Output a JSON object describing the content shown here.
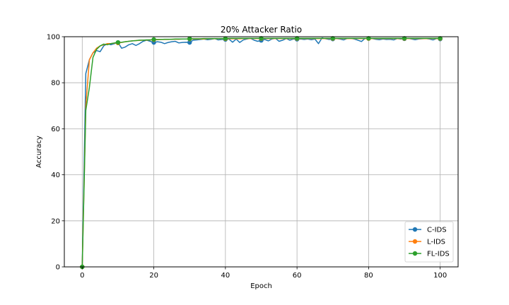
{
  "chart_data": {
    "type": "line",
    "title": "20% Attacker Ratio",
    "xlabel": "Epoch",
    "ylabel": "Accuracy",
    "xlim": [
      -5,
      105
    ],
    "ylim": [
      0,
      100
    ],
    "xticks": [
      0,
      20,
      40,
      60,
      80,
      100
    ],
    "yticks": [
      0,
      20,
      40,
      60,
      80,
      100
    ],
    "xtick_labels": [
      "0",
      "20",
      "40",
      "60",
      "80",
      "100"
    ],
    "ytick_labels": [
      "0",
      "20",
      "40",
      "60",
      "80",
      "100"
    ],
    "grid": true,
    "legend_position": "lower-right",
    "marker_every": 10,
    "series": [
      {
        "name": "C-IDS",
        "color": "#1f77b4",
        "x": [
          0,
          1,
          2,
          3,
          4,
          5,
          6,
          7,
          8,
          9,
          10,
          11,
          12,
          13,
          14,
          15,
          16,
          17,
          18,
          19,
          20,
          21,
          22,
          23,
          24,
          25,
          26,
          27,
          28,
          29,
          30,
          31,
          32,
          33,
          34,
          35,
          36,
          37,
          38,
          39,
          40,
          41,
          42,
          43,
          44,
          45,
          46,
          47,
          48,
          49,
          50,
          51,
          52,
          53,
          54,
          55,
          56,
          57,
          58,
          59,
          60,
          61,
          62,
          63,
          64,
          65,
          66,
          67,
          68,
          69,
          70,
          71,
          72,
          73,
          74,
          75,
          76,
          77,
          78,
          79,
          80,
          81,
          82,
          83,
          84,
          85,
          86,
          87,
          88,
          89,
          90,
          91,
          92,
          93,
          94,
          95,
          96,
          97,
          98,
          99,
          100
        ],
        "y": [
          0,
          84,
          90,
          93,
          94,
          93.5,
          96,
          97,
          96.5,
          97,
          97.5,
          95,
          95.5,
          96.5,
          97,
          96.2,
          97,
          98,
          98.5,
          98,
          97.5,
          97.8,
          97.6,
          97,
          97.5,
          97.8,
          98,
          97.3,
          97.5,
          97.6,
          97.5,
          98.5,
          98.6,
          98.8,
          99,
          98.7,
          98.9,
          99.2,
          98.6,
          98.8,
          98.8,
          99,
          97.6,
          99,
          97.5,
          98.6,
          99,
          99.3,
          98.5,
          98,
          98.4,
          98.8,
          98.2,
          99,
          99.3,
          98,
          98.5,
          99.2,
          98.5,
          99,
          98.9,
          99,
          98.8,
          99,
          98.7,
          99,
          97,
          99.5,
          99.1,
          98.8,
          99,
          99.2,
          99,
          98.6,
          99.2,
          99.3,
          99,
          98.5,
          97.9,
          99.3,
          99.2,
          99.2,
          98.9,
          98.7,
          99,
          98.8,
          98.9,
          98.6,
          99.2,
          99,
          99.1,
          99.3,
          99,
          98.7,
          99,
          99.1,
          99.2,
          99,
          98.6,
          99.2,
          99
        ]
      },
      {
        "name": "L-IDS",
        "color": "#ff7f0e",
        "x": [
          0,
          1,
          2,
          3,
          4,
          5,
          6,
          7,
          8,
          9,
          10,
          11,
          12,
          13,
          14,
          15,
          16,
          17,
          18,
          19,
          20,
          21,
          22,
          23,
          24,
          25,
          26,
          27,
          28,
          29,
          30,
          31,
          32,
          33,
          34,
          35,
          36,
          37,
          38,
          39,
          40,
          41,
          42,
          43,
          44,
          45,
          46,
          47,
          48,
          49,
          50,
          51,
          52,
          53,
          54,
          55,
          56,
          57,
          58,
          59,
          60,
          61,
          62,
          63,
          64,
          65,
          66,
          67,
          68,
          69,
          70,
          71,
          72,
          73,
          74,
          75,
          76,
          77,
          78,
          79,
          80,
          81,
          82,
          83,
          84,
          85,
          86,
          87,
          88,
          89,
          90,
          91,
          92,
          93,
          94,
          95,
          96,
          97,
          98,
          99,
          100
        ],
        "y": [
          0,
          70,
          90,
          93,
          95,
          96,
          96.5,
          97,
          97,
          97.2,
          97.3,
          97.5,
          97.8,
          98,
          98.2,
          98.3,
          98.4,
          98.5,
          98.5,
          98.6,
          98.7,
          98.7,
          98.8,
          98.8,
          98.8,
          98.9,
          98.9,
          98.9,
          99,
          99,
          99,
          99,
          99,
          99,
          99,
          99.1,
          99.1,
          99.1,
          99.1,
          99.1,
          99.1,
          99.1,
          99.1,
          99.1,
          99.1,
          99.2,
          99.2,
          99.2,
          99.2,
          99.2,
          99.2,
          99.2,
          99.2,
          99.2,
          99.2,
          99.2,
          99.2,
          99.2,
          99.2,
          99.2,
          99.2,
          99.2,
          99.2,
          99.2,
          99.2,
          99.2,
          99.2,
          99.2,
          99.2,
          99.2,
          99.2,
          99.2,
          99.2,
          99.2,
          99.2,
          99.2,
          99.2,
          99.2,
          99.2,
          99.2,
          99.2,
          99.2,
          99.2,
          99.2,
          99.2,
          99.2,
          99.2,
          99.2,
          99.2,
          99.2,
          99.2,
          99.2,
          99.2,
          99.2,
          99.2,
          99.2,
          99.2,
          99.2,
          99.2,
          99.2,
          99.2
        ]
      },
      {
        "name": "FL-IDS",
        "color": "#2ca02c",
        "x": [
          0,
          1,
          2,
          3,
          4,
          5,
          6,
          7,
          8,
          9,
          10,
          11,
          12,
          13,
          14,
          15,
          16,
          17,
          18,
          19,
          20,
          21,
          22,
          23,
          24,
          25,
          26,
          27,
          28,
          29,
          30,
          31,
          32,
          33,
          34,
          35,
          36,
          37,
          38,
          39,
          40,
          41,
          42,
          43,
          44,
          45,
          46,
          47,
          48,
          49,
          50,
          51,
          52,
          53,
          54,
          55,
          56,
          57,
          58,
          59,
          60,
          61,
          62,
          63,
          64,
          65,
          66,
          67,
          68,
          69,
          70,
          71,
          72,
          73,
          74,
          75,
          76,
          77,
          78,
          79,
          80,
          81,
          82,
          83,
          84,
          85,
          86,
          87,
          88,
          89,
          90,
          91,
          92,
          93,
          94,
          95,
          96,
          97,
          98,
          99,
          100
        ],
        "y": [
          0,
          68,
          78,
          91,
          94.5,
          96,
          96.8,
          96.5,
          97,
          97.3,
          97.5,
          97.6,
          97.8,
          98,
          98.2,
          98.3,
          98.5,
          98.5,
          98.6,
          98.6,
          98.8,
          98.8,
          98.8,
          98.9,
          98.9,
          98.9,
          99,
          99,
          99,
          99,
          99.1,
          99.1,
          99.1,
          99.1,
          99.2,
          99.2,
          99.2,
          99.2,
          99.2,
          99.2,
          99.2,
          99.3,
          99.3,
          99.3,
          99.3,
          99.3,
          99.3,
          99.3,
          99.3,
          99.3,
          99.3,
          99.3,
          99.3,
          99.3,
          99.3,
          99.3,
          99.3,
          99.3,
          99.3,
          99.3,
          99.3,
          99.3,
          99.3,
          99.3,
          99.3,
          99.3,
          99.3,
          99.3,
          99.3,
          99.3,
          99.3,
          99.3,
          99.3,
          99.3,
          99.3,
          99.3,
          99.3,
          99.3,
          99.3,
          99.3,
          99.3,
          99.3,
          99.3,
          99.3,
          99.3,
          99.3,
          99.3,
          99.3,
          99.3,
          99.3,
          99.3,
          99.3,
          99.3,
          99.3,
          99.3,
          99.3,
          99.3,
          99.3,
          99.3,
          99.3,
          99.3
        ]
      }
    ]
  }
}
